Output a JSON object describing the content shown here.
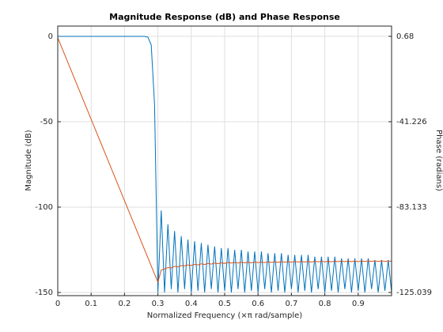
{
  "chart_data": {
    "type": "line",
    "title": "Magnitude Response (dB) and Phase Response",
    "xlabel": "Normalized Frequency (×π rad/sample)",
    "ylabel": "Magnitude (dB)",
    "y2label": "Phase (radians)",
    "xlim": [
      0,
      1
    ],
    "xticks": [
      0,
      0.1,
      0.2,
      0.3,
      0.4,
      0.5,
      0.6,
      0.7,
      0.8,
      0.9
    ],
    "ylim": [
      -151.85,
      6
    ],
    "yticks": [
      0,
      -50,
      -100,
      -150
    ],
    "y2lim": [
      -126.59,
      5.71
    ],
    "y2ticks": [
      0.68,
      -41.226,
      -83.133,
      -125.039
    ],
    "grid": true,
    "x": [
      0,
      0.01,
      0.02,
      0.03,
      0.04,
      0.05,
      0.06,
      0.07,
      0.08,
      0.09,
      0.1,
      0.11,
      0.12,
      0.13,
      0.14,
      0.15,
      0.16,
      0.17,
      0.18,
      0.19,
      0.2,
      0.21,
      0.22,
      0.23,
      0.24,
      0.25,
      0.26,
      0.27,
      0.28,
      0.29,
      0.3,
      0.31,
      0.32,
      0.33,
      0.34,
      0.35,
      0.36,
      0.37,
      0.38,
      0.39,
      0.4,
      0.41,
      0.42,
      0.43,
      0.44,
      0.45,
      0.46,
      0.47,
      0.48,
      0.49,
      0.5,
      0.51,
      0.52,
      0.53,
      0.54,
      0.55,
      0.56,
      0.57,
      0.58,
      0.59,
      0.6,
      0.61,
      0.62,
      0.63,
      0.64,
      0.65,
      0.66,
      0.67,
      0.68,
      0.69,
      0.7,
      0.71,
      0.72,
      0.73,
      0.74,
      0.75,
      0.76,
      0.77,
      0.78,
      0.79,
      0.8,
      0.81,
      0.82,
      0.83,
      0.84,
      0.85,
      0.86,
      0.87,
      0.88,
      0.89,
      0.9,
      0.91,
      0.92,
      0.93,
      0.94,
      0.95,
      0.96,
      0.97,
      0.98,
      0.99,
      1
    ],
    "series": [
      {
        "name": "Magnitude",
        "color": "#0072bd",
        "axis": "y",
        "values": [
          0,
          0,
          0,
          0,
          0,
          0,
          0,
          0,
          0,
          0,
          0,
          0,
          0,
          0,
          0,
          0,
          0,
          0,
          0,
          0,
          0,
          0,
          0,
          0,
          0,
          0,
          0,
          -0.5,
          -5,
          -40,
          -150,
          -102,
          -150,
          -110,
          -148,
          -114,
          -150,
          -117,
          -148,
          -119,
          -150,
          -120,
          -149,
          -121,
          -150,
          -122,
          -148,
          -123,
          -150,
          -124,
          -149,
          -124,
          -150,
          -125,
          -148,
          -125,
          -150,
          -126,
          -149,
          -126,
          -150,
          -126,
          -148,
          -127,
          -150,
          -127,
          -149,
          -127,
          -150,
          -128,
          -148,
          -128,
          -150,
          -128,
          -149,
          -128,
          -150,
          -129,
          -148,
          -129,
          -150,
          -129,
          -149,
          -129,
          -150,
          -130,
          -148,
          -130,
          -150,
          -130,
          -149,
          -130,
          -150,
          -130,
          -148,
          -131,
          -150,
          -131,
          -149,
          -131,
          -150
        ]
      },
      {
        "name": "Phase",
        "color": "#d95319",
        "axis": "y2",
        "values": [
          0,
          -4,
          -8,
          -12,
          -16,
          -20,
          -24,
          -28,
          -32,
          -36,
          -40,
          -44,
          -48,
          -52,
          -56,
          -60,
          -64,
          -68,
          -72,
          -76,
          -80,
          -84,
          -88,
          -92,
          -96,
          -100,
          -104,
          -108,
          -112,
          -116,
          -120,
          -114,
          -113.5,
          -112.8,
          -113,
          -112.2,
          -112.5,
          -111.8,
          -112,
          -111.5,
          -111.8,
          -111.2,
          -111.5,
          -111,
          -111.3,
          -110.8,
          -111.1,
          -110.6,
          -110.9,
          -110.5,
          -110.8,
          -110.3,
          -110.6,
          -110.3,
          -110.6,
          -110.2,
          -110.5,
          -110.2,
          -110.5,
          -110.1,
          -110.4,
          -110.1,
          -110.4,
          -110,
          -110.3,
          -110,
          -110.3,
          -109.9,
          -110.2,
          -109.9,
          -110.2,
          -109.8,
          -110.1,
          -109.8,
          -110.1,
          -109.8,
          -110.1,
          -109.7,
          -110,
          -109.7,
          -110,
          -109.7,
          -110,
          -109.6,
          -109.9,
          -109.6,
          -109.9,
          -109.6,
          -109.9,
          -109.6,
          -109.9,
          -109.5,
          -109.8,
          -109.5,
          -109.8,
          -109.5,
          -109.8,
          -109.5,
          -109.8,
          -109.5,
          -109.8
        ]
      }
    ]
  }
}
